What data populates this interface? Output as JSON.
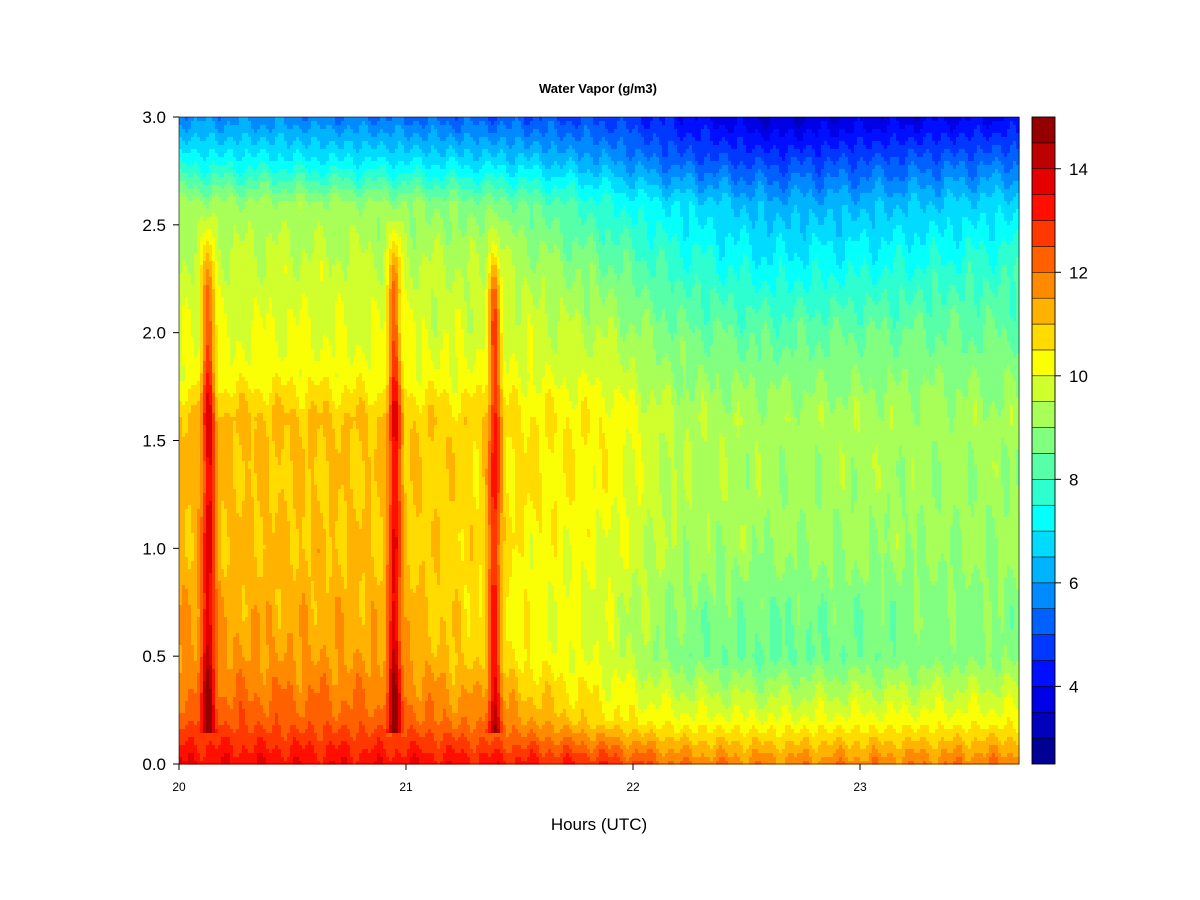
{
  "chart_data": {
    "type": "heatmap",
    "subtype": "filled-contour",
    "title": "Water Vapor (g/m3)",
    "xlabel": "Hours (UTC)",
    "ylabel": "",
    "xlim": [
      20,
      23.7
    ],
    "ylim": [
      0,
      3.0
    ],
    "x_ticks": [
      20,
      21,
      22,
      23
    ],
    "x_tick_labels": [
      "20",
      "21",
      "22",
      "23"
    ],
    "y_ticks": [
      0,
      0.5,
      1.0,
      1.5,
      2.0,
      2.5,
      3.0
    ],
    "y_tick_labels": [
      "0.0",
      "0.5",
      "1.0",
      "1.5",
      "2.0",
      "2.5",
      "3.0"
    ],
    "colorbar": {
      "levels": [
        2.5,
        3.0,
        3.5,
        4.0,
        4.5,
        5.0,
        5.5,
        6.0,
        6.5,
        7.0,
        7.5,
        8.0,
        8.5,
        9.0,
        9.5,
        10.0,
        10.5,
        11.0,
        11.5,
        12.0,
        12.5,
        13.0,
        13.5,
        14.0,
        14.5,
        15.0
      ],
      "ticks": [
        4,
        6,
        8,
        10,
        12,
        14
      ],
      "tick_labels": [
        "4",
        "6",
        "8",
        "10",
        "12",
        "14"
      ],
      "colormap": "jet",
      "position": "right"
    },
    "grid": false,
    "spikes_x": [
      20.13,
      20.95,
      21.39
    ],
    "heights": [
      0,
      0.2,
      0.5,
      0.8,
      1.0,
      1.3,
      1.6,
      1.8,
      2.0,
      2.3,
      2.6,
      2.8,
      3.0
    ],
    "profiles": [
      {
        "x": 20.0,
        "values": [
          13.5,
          12.4,
          11.6,
          11.3,
          11.2,
          11.1,
          11.2,
          10.2,
          9.9,
          9.6,
          9.1,
          7.3,
          5.8
        ]
      },
      {
        "x": 20.5,
        "values": [
          13.4,
          12.3,
          11.5,
          11.2,
          11.1,
          11.0,
          11.1,
          10.3,
          10.0,
          9.7,
          9.2,
          7.1,
          5.7
        ]
      },
      {
        "x": 21.0,
        "values": [
          13.4,
          12.2,
          11.4,
          11.1,
          11.0,
          10.9,
          11.0,
          10.2,
          9.9,
          9.6,
          9.0,
          6.9,
          5.4
        ]
      },
      {
        "x": 21.5,
        "values": [
          13.2,
          11.6,
          10.4,
          10.3,
          10.4,
          10.6,
          10.6,
          10.0,
          9.8,
          9.4,
          8.6,
          6.6,
          5.1
        ]
      },
      {
        "x": 21.9,
        "values": [
          12.9,
          10.6,
          9.8,
          9.8,
          10.0,
          10.2,
          10.4,
          9.8,
          9.4,
          8.6,
          7.5,
          6.0,
          4.8
        ]
      },
      {
        "x": 22.2,
        "values": [
          12.0,
          10.2,
          8.7,
          9.0,
          9.3,
          9.4,
          9.4,
          9.0,
          8.6,
          7.8,
          6.9,
          5.2,
          4.2
        ]
      },
      {
        "x": 22.6,
        "values": [
          11.8,
          10.1,
          8.4,
          8.7,
          9.1,
          9.2,
          9.3,
          8.8,
          8.3,
          7.2,
          6.2,
          4.8,
          3.4
        ]
      },
      {
        "x": 23.0,
        "values": [
          11.8,
          10.2,
          8.6,
          8.8,
          9.1,
          9.2,
          9.3,
          8.9,
          8.5,
          7.4,
          6.3,
          5.0,
          3.6
        ]
      },
      {
        "x": 23.7,
        "values": [
          12.0,
          10.3,
          8.9,
          8.9,
          9.1,
          9.1,
          9.2,
          8.9,
          8.5,
          7.9,
          6.8,
          5.4,
          4.0
        ]
      }
    ]
  }
}
